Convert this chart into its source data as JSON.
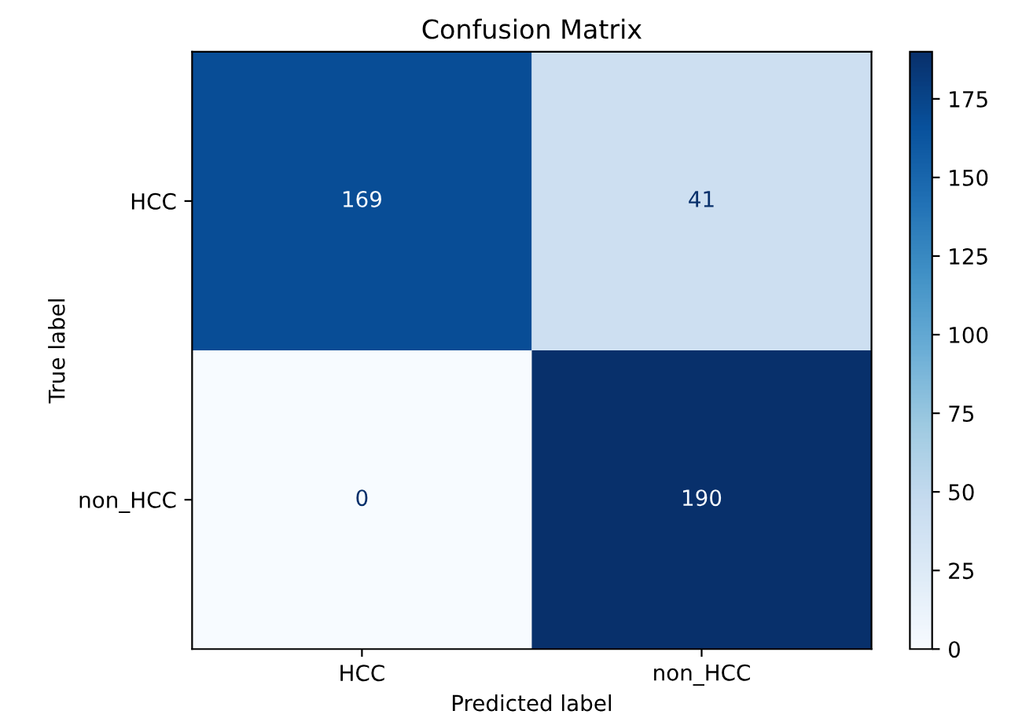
{
  "chart_data": {
    "type": "heatmap",
    "title": "Confusion Matrix",
    "xlabel": "Predicted label",
    "ylabel": "True label",
    "categories": [
      "HCC",
      "non_HCC"
    ],
    "y_categories": [
      "HCC",
      "non_HCC"
    ],
    "cells": [
      [
        169,
        41
      ],
      [
        0,
        190
      ]
    ],
    "data_labels": true,
    "clim": [
      0,
      190
    ],
    "cticks": [
      0,
      25,
      50,
      75,
      100,
      125,
      150,
      175
    ],
    "grid": false
  }
}
